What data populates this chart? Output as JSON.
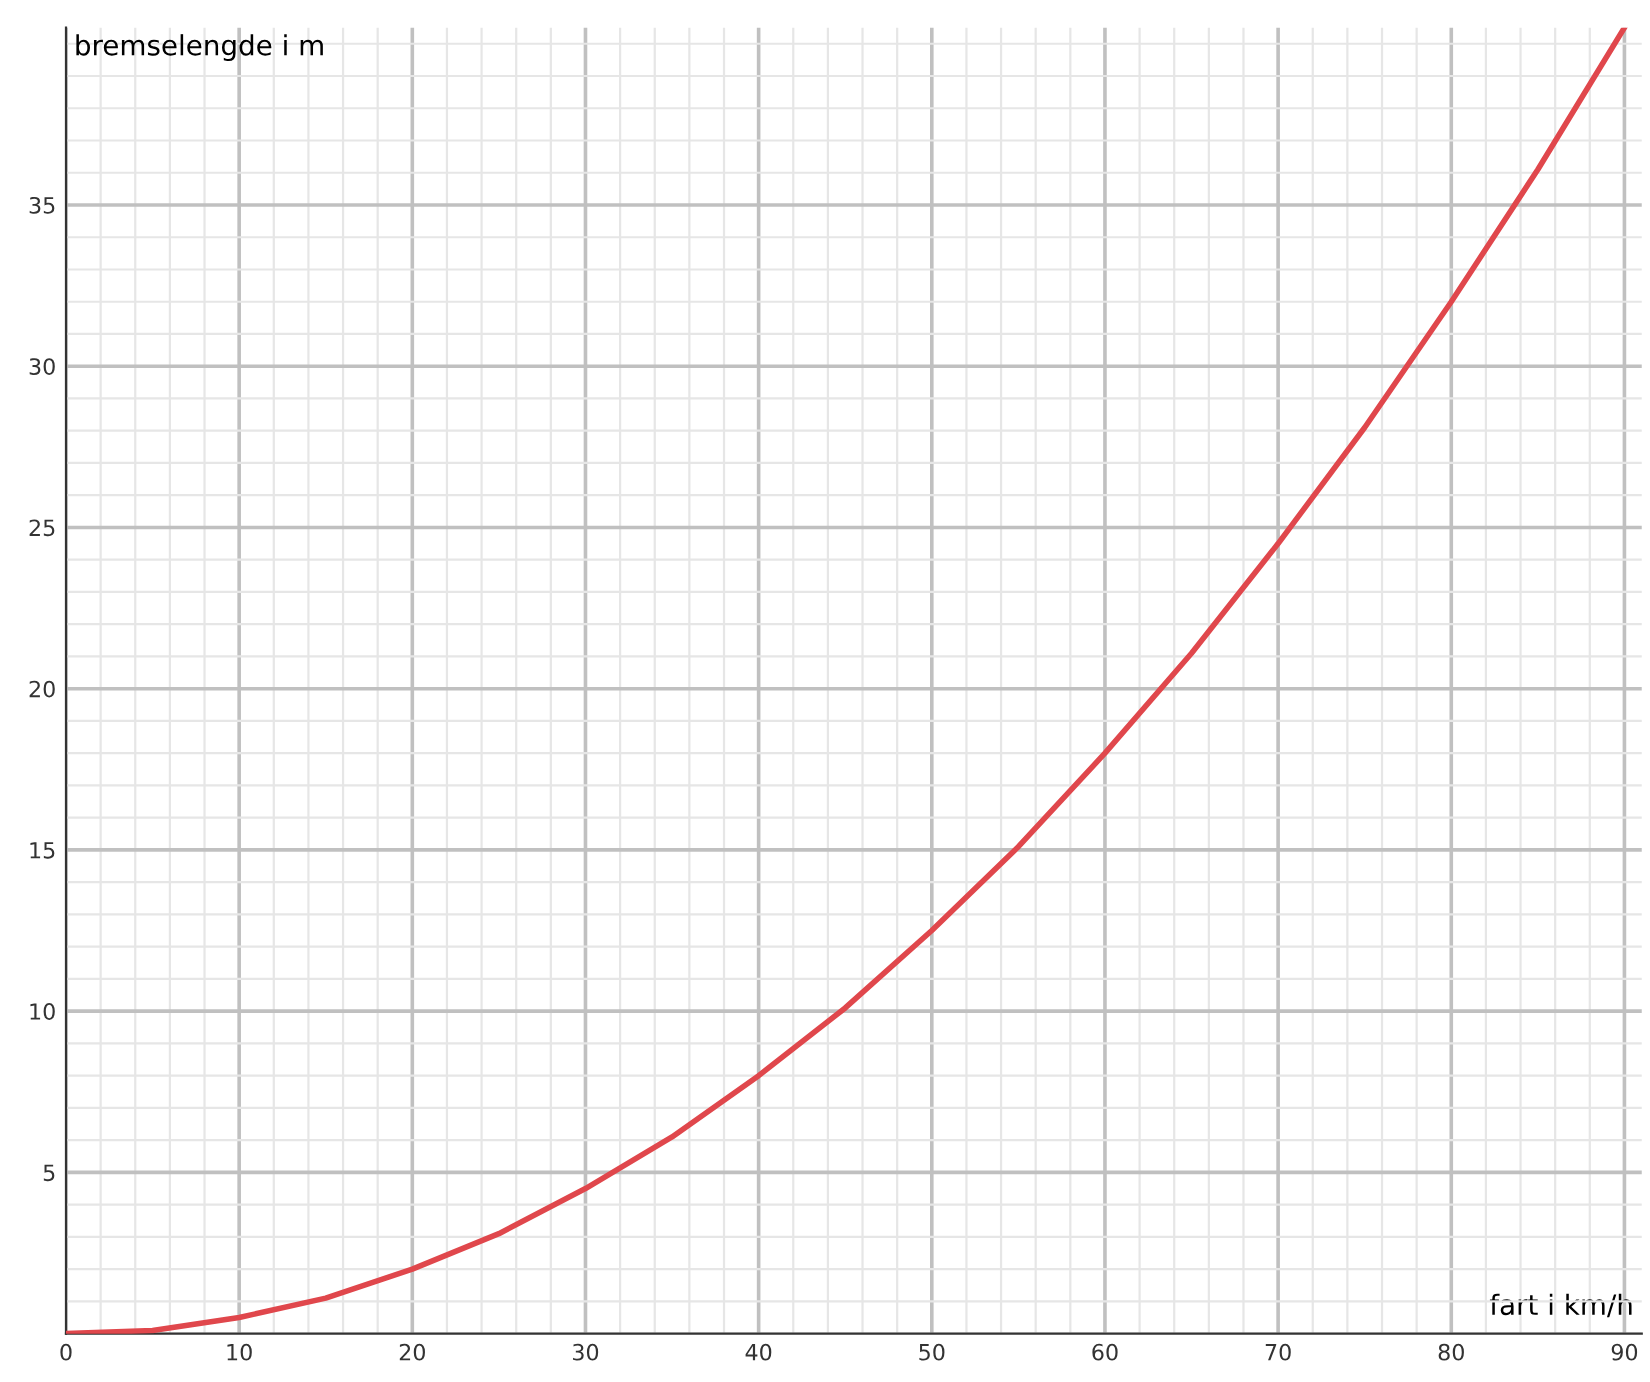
{
  "chart_data": {
    "type": "line",
    "xlabel": "fart i km/h",
    "ylabel": "bremselengde i m",
    "x": [
      0,
      5,
      10,
      15,
      20,
      25,
      30,
      35,
      40,
      45,
      50,
      55,
      60,
      65,
      70,
      75,
      80,
      85,
      90
    ],
    "series": [
      {
        "color": "#e0474c",
        "values": [
          0,
          0.1,
          0.5,
          1.1,
          2,
          3.1,
          4.5,
          6.1,
          8,
          10.1,
          12.5,
          15.1,
          18,
          21.1,
          24.5,
          28.1,
          32,
          36.1,
          40.5
        ]
      }
    ],
    "xlim": [
      0,
      91
    ],
    "ylim": [
      0,
      40.5
    ],
    "xticks": [
      0,
      10,
      20,
      30,
      40,
      50,
      60,
      70,
      80,
      90
    ],
    "yticks": [
      5,
      10,
      15,
      20,
      25,
      30,
      35
    ],
    "grid": true,
    "marker": "none",
    "line_style": "solid"
  }
}
